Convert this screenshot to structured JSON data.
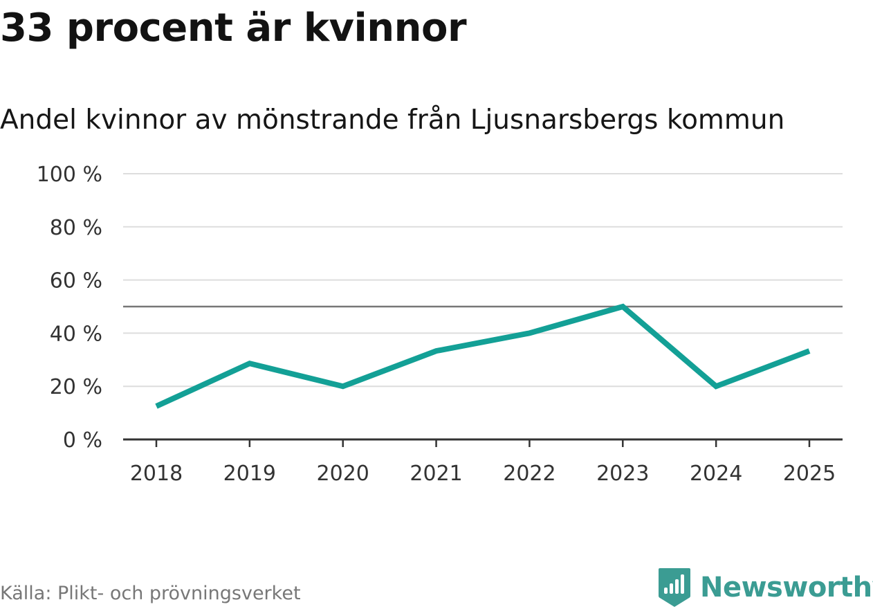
{
  "title": "33 procent är kvinnor",
  "subtitle": "Andel kvinnor av mönstrande från Ljusnarsbergs kommun",
  "source": "Källa: Plikt- och prövningsverket",
  "brand": {
    "name": "Newsworthy",
    "color": "#3b9c93"
  },
  "colors": {
    "line": "#13a096",
    "grid": "#dddddd",
    "reference_line": "#777777",
    "axis": "#333333"
  },
  "chart_data": {
    "type": "line",
    "title": "Andel kvinnor av mönstrande från Ljusnarsbergs kommun",
    "xlabel": "",
    "ylabel": "",
    "categories": [
      "2018",
      "2019",
      "2020",
      "2021",
      "2022",
      "2023",
      "2024",
      "2025"
    ],
    "series": [
      {
        "name": "Andel kvinnor",
        "values": [
          12.5,
          28.6,
          20,
          33.3,
          40,
          50,
          20,
          33.3
        ]
      }
    ],
    "ylim": [
      0,
      100
    ],
    "yticks": [
      0,
      20,
      40,
      60,
      80,
      100
    ],
    "ytick_labels": [
      "0 %",
      "20 %",
      "40 %",
      "60 %",
      "80 %",
      "100 %"
    ],
    "reference_line": 50,
    "grid": true,
    "legend": "none"
  }
}
